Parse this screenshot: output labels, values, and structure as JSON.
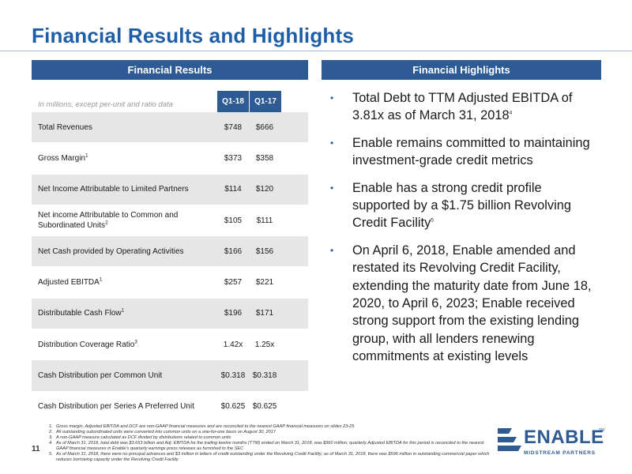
{
  "slide": {
    "title": "Financial Results and Highlights",
    "page_number": "11"
  },
  "left": {
    "header": "Financial Results",
    "units_note": "In millions, except per-unit and ratio data",
    "columns": [
      "Q1-18",
      "Q1-17"
    ],
    "rows": [
      {
        "label": "Total Revenues",
        "sup": "",
        "q1_18": "$748",
        "q1_17": "$666"
      },
      {
        "label": "Gross Margin",
        "sup": "1",
        "q1_18": "$373",
        "q1_17": "$358"
      },
      {
        "label": "Net Income Attributable to Limited Partners",
        "sup": "",
        "q1_18": "$114",
        "q1_17": "$120"
      },
      {
        "label": "Net income Attributable to Common  and Subordinated Units",
        "sup": "2",
        "q1_18": "$105",
        "q1_17": "$111"
      },
      {
        "label": "Net Cash provided by Operating Activities",
        "sup": "",
        "q1_18": "$166",
        "q1_17": "$156"
      },
      {
        "label": "Adjusted EBITDA",
        "sup": "1",
        "q1_18": "$257",
        "q1_17": "$221"
      },
      {
        "label": "Distributable Cash Flow",
        "sup": "1",
        "q1_18": "$196",
        "q1_17": "$171"
      },
      {
        "label": "Distribution Coverage Ratio",
        "sup": "3",
        "q1_18": "1.42x",
        "q1_17": "1.25x"
      },
      {
        "label": "Cash Distribution per Common Unit",
        "sup": "",
        "q1_18": "$0.318",
        "q1_17": "$0.318"
      },
      {
        "label": "Cash Distribution per Series A Preferred Unit",
        "sup": "",
        "q1_18": "$0.625",
        "q1_17": "$0.625"
      }
    ]
  },
  "right": {
    "header": "Financial Highlights",
    "bullets": [
      {
        "text": "Total Debt to TTM Adjusted EBITDA of 3.81x as of March 31, 2018",
        "sup": "4"
      },
      {
        "text": "Enable remains committed to maintaining investment-grade credit metrics",
        "sup": ""
      },
      {
        "text": "Enable has a strong credit profile supported by a $1.75 billion Revolving Credit Facility",
        "sup": "5"
      },
      {
        "text": "On April 6, 2018, Enable amended and restated its Revolving Credit Facility, extending the maturity date from June 18, 2020, to April 6, 2023; Enable received strong support from the existing lending group, with all lenders renewing commitments at existing levels",
        "sup": ""
      }
    ]
  },
  "footnotes": [
    {
      "num": "1.",
      "text": "Gross margin, Adjusted EBITDA and DCF are non-GAAP financial measures and are reconciled to the nearest GAAP financial measures on slides 23-25"
    },
    {
      "num": "2.",
      "text": "All outstanding subordinated units were converted into common units on a one-for-one basis on August 30, 2017"
    },
    {
      "num": "3.",
      "text": "A non-GAAP measure calculated as DCF divided by distributions related to common units"
    },
    {
      "num": "4.",
      "text": "As of March 31, 2018, total debt was $3.653 billion and Adj. EBITDA for the trailing twelve months (TTM) ended on March 31, 2018, was $960 million; quarterly Adjusted EBITDA for this period is reconciled to the nearest GAAP financial measures in Enable's quarterly earnings press releases as furnished to the SEC"
    },
    {
      "num": "5.",
      "text": "As of March 31, 2018, there were no principal advances and $3 million in letters of credit outstanding under the Revolving Credit Facility; as of March 31, 2018, there was $596 million in outstanding commercial paper which reduces borrowing capacity under the Revolving Credit Facility"
    }
  ],
  "logo": {
    "word": "ENABLE",
    "tm": "TM",
    "subtitle": "MIDSTREAM PARTNERS",
    "color": "#2e5b93"
  },
  "colors": {
    "title": "#1d5ea8",
    "header_bg": "#2e5b93",
    "row_shade": "#e6e6e6"
  }
}
